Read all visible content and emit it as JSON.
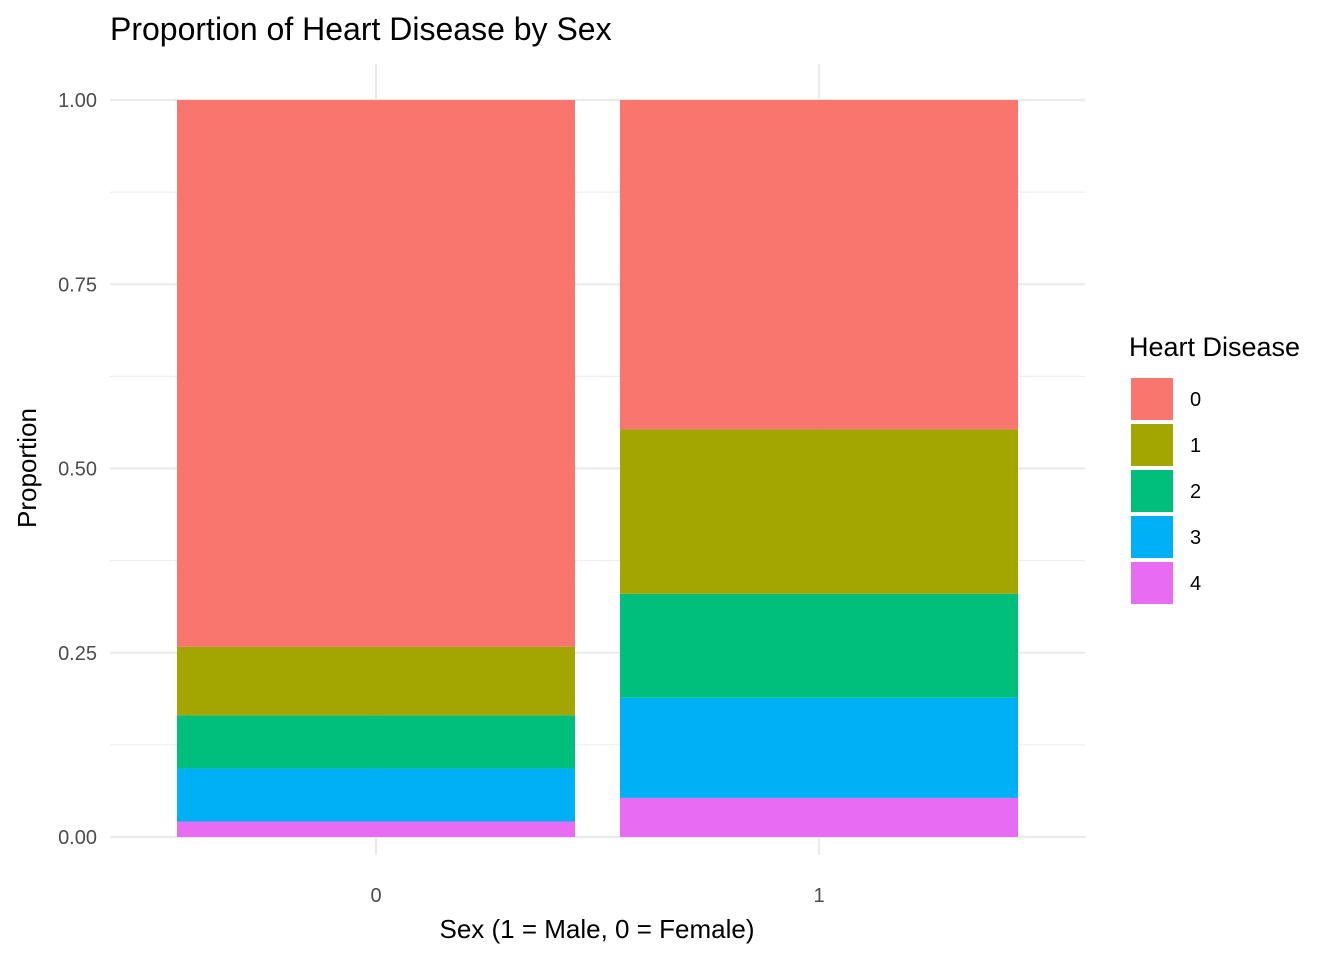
{
  "chart_data": {
    "type": "bar",
    "stacked": true,
    "title": "Proportion of Heart Disease by Sex",
    "xlabel": "Sex (1 = Male, 0 = Female)",
    "ylabel": "Proportion",
    "ylim": [
      0,
      1
    ],
    "yticks": [
      "0.00",
      "0.25",
      "0.50",
      "0.75",
      "1.00"
    ],
    "categories": [
      "0",
      "1"
    ],
    "legend": {
      "title": "Heart Disease",
      "position": "right"
    },
    "grid": true,
    "series": [
      {
        "name": "0",
        "color": "#F8766D",
        "values": [
          0.742,
          0.447
        ]
      },
      {
        "name": "1",
        "color": "#A3A500",
        "values": [
          0.093,
          0.223
        ]
      },
      {
        "name": "2",
        "color": "#00BF7D",
        "values": [
          0.072,
          0.141
        ]
      },
      {
        "name": "3",
        "color": "#00B0F6",
        "values": [
          0.072,
          0.136
        ]
      },
      {
        "name": "4",
        "color": "#E76BF3",
        "values": [
          0.021,
          0.053
        ]
      }
    ]
  }
}
